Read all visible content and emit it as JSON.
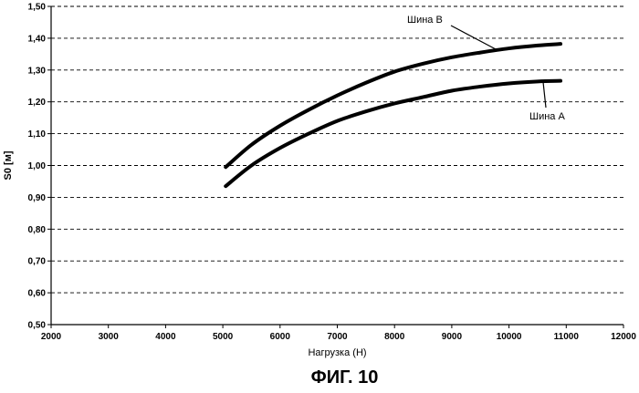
{
  "chart_data": {
    "type": "line",
    "title": "",
    "xlabel": "Нагрузка (Н)",
    "ylabel": "S0 [м]",
    "xlim": [
      2000,
      12000
    ],
    "ylim": [
      0.5,
      1.5
    ],
    "x_ticks": [
      2000,
      3000,
      4000,
      5000,
      6000,
      7000,
      8000,
      9000,
      10000,
      11000,
      12000
    ],
    "x_tick_labels": [
      "2000",
      "3000",
      "4000",
      "5000",
      "6000",
      "7000",
      "8000",
      "9000",
      "10000",
      "11000",
      "12000"
    ],
    "y_ticks": [
      0.5,
      0.6,
      0.7,
      0.8,
      0.9,
      1.0,
      1.1,
      1.2,
      1.3,
      1.4,
      1.5
    ],
    "y_tick_labels": [
      "0,50",
      "0,60",
      "0,70",
      "0,80",
      "0,90",
      "1,00",
      "1,10",
      "1,20",
      "1,30",
      "1,40",
      "1,50"
    ],
    "grid": "horizontal dashed",
    "series": [
      {
        "name": "Шина B",
        "x": [
          5050,
          5500,
          6000,
          6500,
          7000,
          7500,
          8000,
          8500,
          9000,
          9500,
          10000,
          10500,
          10900
        ],
        "y": [
          0.995,
          1.065,
          1.125,
          1.175,
          1.22,
          1.26,
          1.295,
          1.32,
          1.34,
          1.355,
          1.368,
          1.377,
          1.382
        ]
      },
      {
        "name": "Шина A",
        "x": [
          5050,
          5500,
          6000,
          6500,
          7000,
          7500,
          8000,
          8500,
          9000,
          9500,
          10000,
          10500,
          10900
        ],
        "y": [
          0.935,
          1.0,
          1.055,
          1.1,
          1.14,
          1.17,
          1.195,
          1.215,
          1.235,
          1.248,
          1.258,
          1.264,
          1.266
        ]
      }
    ],
    "annotations": [
      "Шина B",
      "Шина A"
    ]
  },
  "caption": "ФИГ. 10"
}
